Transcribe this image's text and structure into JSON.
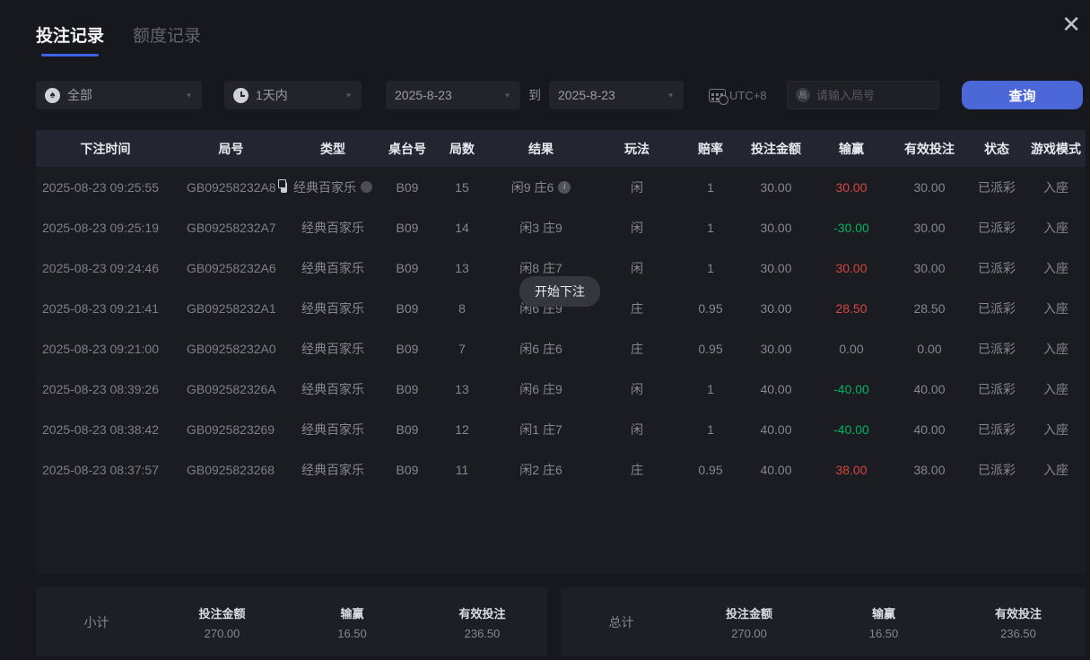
{
  "window": {
    "close_icon": "✕"
  },
  "tabs": [
    {
      "label": "投注记录",
      "active": true
    },
    {
      "label": "额度记录",
      "active": false
    }
  ],
  "filters": {
    "game_type": "全部",
    "spade_char": "♠",
    "time_range": "1天内",
    "date_from": "2025-8-23",
    "to_label": "到",
    "date_to": "2025-8-23",
    "timezone": "UTC+8",
    "round_icon_char": "局",
    "round_placeholder": "请输入局号",
    "query_label": "查询",
    "caret_char": "▼"
  },
  "table": {
    "headers": [
      "下注时间",
      "局号",
      "类型",
      "桌台号",
      "局数",
      "结果",
      "玩法",
      "赔率",
      "投注金额",
      "输赢",
      "有效投注",
      "状态",
      "游戏模式"
    ],
    "rows": [
      {
        "time": "2025-08-23 09:25:55",
        "round_id": "GB09258232A8",
        "type": "经典百家乐",
        "table_no": "B09",
        "round_no": "15",
        "result": "闲9 庄6",
        "play": "闲",
        "odds": "1",
        "bet_amount": "30.00",
        "win_loss": "30.00",
        "win_loss_color": "red",
        "valid_bet": "30.00",
        "status": "已派彩",
        "mode": "入座",
        "icons": true
      },
      {
        "time": "2025-08-23 09:25:19",
        "round_id": "GB09258232A7",
        "type": "经典百家乐",
        "table_no": "B09",
        "round_no": "14",
        "result": "闲3 庄9",
        "play": "闲",
        "odds": "1",
        "bet_amount": "30.00",
        "win_loss": "-30.00",
        "win_loss_color": "green",
        "valid_bet": "30.00",
        "status": "已派彩",
        "mode": "入座",
        "icons": false
      },
      {
        "time": "2025-08-23 09:24:46",
        "round_id": "GB09258232A6",
        "type": "经典百家乐",
        "table_no": "B09",
        "round_no": "13",
        "result": "闲8 庄7",
        "play": "闲",
        "odds": "1",
        "bet_amount": "30.00",
        "win_loss": "30.00",
        "win_loss_color": "red",
        "valid_bet": "30.00",
        "status": "已派彩",
        "mode": "入座",
        "icons": false
      },
      {
        "time": "2025-08-23 09:21:41",
        "round_id": "GB09258232A1",
        "type": "经典百家乐",
        "table_no": "B09",
        "round_no": "8",
        "result": "闲6 庄9",
        "play": "庄",
        "odds": "0.95",
        "bet_amount": "30.00",
        "win_loss": "28.50",
        "win_loss_color": "red",
        "valid_bet": "28.50",
        "status": "已派彩",
        "mode": "入座",
        "icons": false
      },
      {
        "time": "2025-08-23 09:21:00",
        "round_id": "GB09258232A0",
        "type": "经典百家乐",
        "table_no": "B09",
        "round_no": "7",
        "result": "闲6 庄6",
        "play": "庄",
        "odds": "0.95",
        "bet_amount": "30.00",
        "win_loss": "0.00",
        "win_loss_color": "",
        "valid_bet": "0.00",
        "status": "已派彩",
        "mode": "入座",
        "icons": false
      },
      {
        "time": "2025-08-23 08:39:26",
        "round_id": "GB092582326A",
        "type": "经典百家乐",
        "table_no": "B09",
        "round_no": "13",
        "result": "闲6 庄9",
        "play": "闲",
        "odds": "1",
        "bet_amount": "40.00",
        "win_loss": "-40.00",
        "win_loss_color": "green",
        "valid_bet": "40.00",
        "status": "已派彩",
        "mode": "入座",
        "icons": false
      },
      {
        "time": "2025-08-23 08:38:42",
        "round_id": "GB0925823269",
        "type": "经典百家乐",
        "table_no": "B09",
        "round_no": "12",
        "result": "闲1 庄7",
        "play": "闲",
        "odds": "1",
        "bet_amount": "40.00",
        "win_loss": "-40.00",
        "win_loss_color": "green",
        "valid_bet": "40.00",
        "status": "已派彩",
        "mode": "入座",
        "icons": false
      },
      {
        "time": "2025-08-23 08:37:57",
        "round_id": "GB0925823268",
        "type": "经典百家乐",
        "table_no": "B09",
        "round_no": "11",
        "result": "闲2 庄6",
        "play": "庄",
        "odds": "0.95",
        "bet_amount": "40.00",
        "win_loss": "38.00",
        "win_loss_color": "red",
        "valid_bet": "38.00",
        "status": "已派彩",
        "mode": "入座",
        "icons": false
      }
    ]
  },
  "toast": {
    "label": "开始下注"
  },
  "summary": {
    "bet_label": "投注金额",
    "win_label": "输赢",
    "valid_label": "有效投注",
    "subtotal_label": "小计",
    "total_label": "总计",
    "subtotal": {
      "bet": "270.00",
      "win": "16.50",
      "valid": "236.50"
    },
    "total": {
      "bet": "270.00",
      "win": "16.50",
      "valid": "236.50"
    }
  },
  "colors": {
    "accent_blue": "#4b67d8",
    "win_red": "#d5463e",
    "loss_green": "#00b45f",
    "page_bg": "#17181d",
    "table_bg": "#1b1c22",
    "header_bg": "#232530"
  }
}
